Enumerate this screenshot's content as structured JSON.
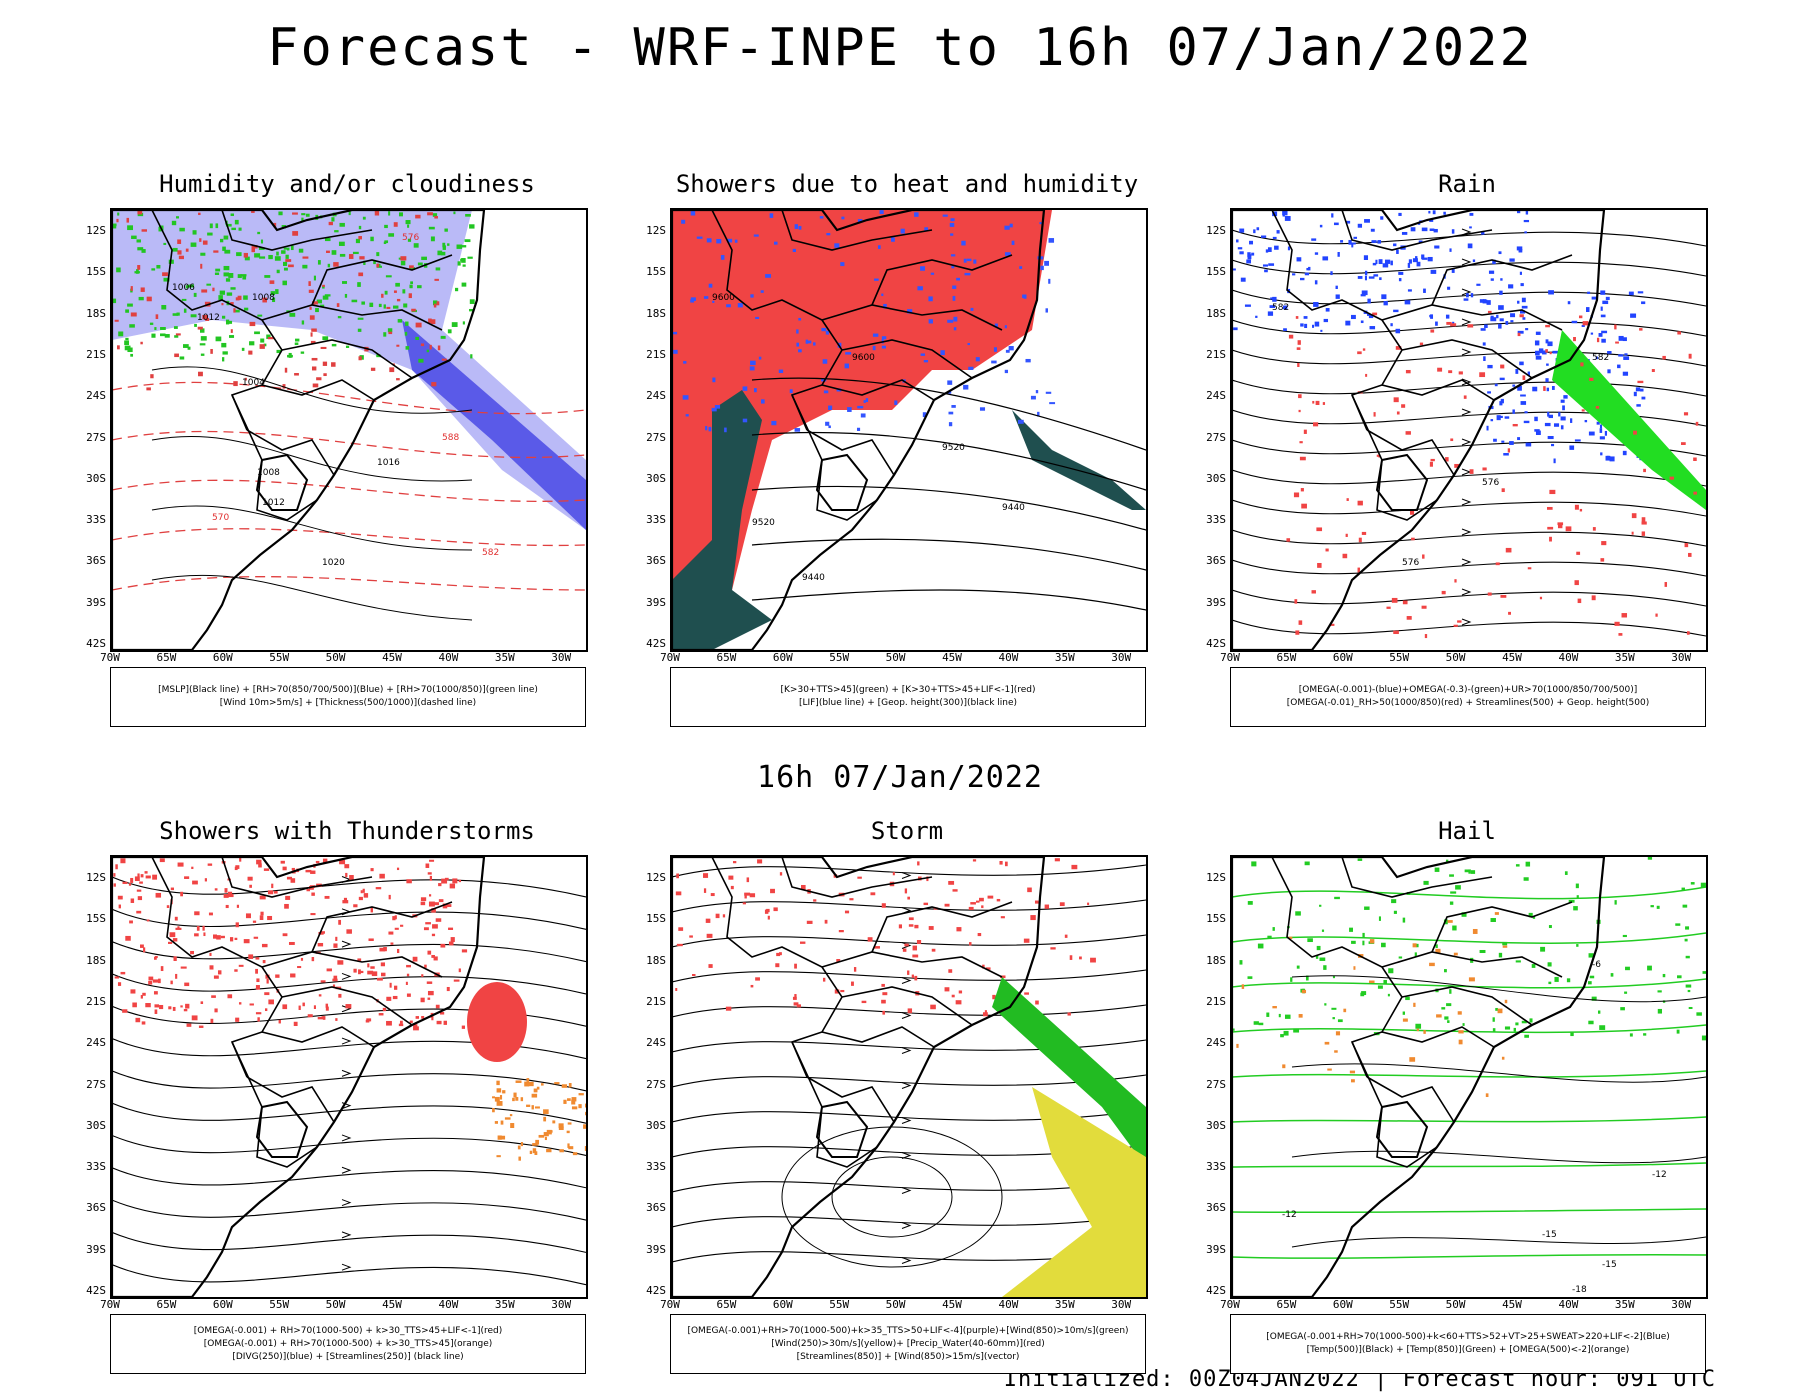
{
  "main_title": "Forecast - WRF-INPE to 16h 07/Jan/2022",
  "mid_title": "16h 07/Jan/2022",
  "footer": "Initialized: 00Z04JAN2022 | Forecast hour: 091 UTC",
  "y_axis_labels": [
    "12S",
    "15S",
    "18S",
    "21S",
    "24S",
    "27S",
    "30S",
    "33S",
    "36S",
    "39S",
    "42S"
  ],
  "x_axis_labels": [
    "70W",
    "65W",
    "60W",
    "55W",
    "50W",
    "45W",
    "40W",
    "35W",
    "30W"
  ],
  "panels": [
    {
      "title": "Humidity and/or cloudiness",
      "legend": [
        "[MSLP](Black line) + [RH>70(850/700/500)](Blue) + [RH>70(1000/850)](green line)",
        "[Wind 10m>5m/s] + [Thickness(500/1000)](dashed line)"
      ]
    },
    {
      "title": "Showers due to heat and humidity",
      "legend": [
        "[K>30+TTS>45](green) + [K>30+TTS>45+LIF<-1](red)",
        "[LIF](blue line) + [Geop. height(300)](black line)"
      ]
    },
    {
      "title": "Rain",
      "legend": [
        "[OMEGA(-0.001)-(blue)+OMEGA(-0.3)-(green)+UR>70(1000/850/700/500)]",
        "[OMEGA(-0.01)_RH>50(1000/850)(red) + Streamlines(500) + Geop. height(500)"
      ]
    },
    {
      "title": "Showers with Thunderstorms",
      "legend": [
        "[OMEGA(-0.001) + RH>70(1000-500) + k>30_TTS>45+LIF<-1](red)",
        "[OMEGA(-0.001) + RH>70(1000-500) + k>30_TTS>45](orange)",
        "[DIVG(250)](blue) + [Streamlines(250)] (black line)"
      ]
    },
    {
      "title": "Storm",
      "legend": [
        "[OMEGA(-0.001)+RH>70(1000-500)+k>35_TTS>50+LIF<-4](purple)+[Wind(850)>10m/s](green)",
        "[Wind(250)>30m/s](yellow)+ [Precip_Water(40-60mm)](red)",
        "[Streamlines(850)] + [Wind(850)>15m/s](vector)"
      ]
    },
    {
      "title": "Hail",
      "legend": [
        "[OMEGA(-0.001+RH>70(1000-500)+k<60+TTS>52+VT>25+SWEAT>220+LIF<-2](Blue)",
        "[Temp(500)](Black) + [Temp(850)](Green) + [OMEGA(500)<-2](orange)"
      ]
    }
  ],
  "contour_labels": {
    "p1": [
      "1006",
      "1008",
      "1012",
      "1004",
      "1016",
      "1020",
      "576",
      "570",
      "582",
      "588"
    ],
    "p2": [
      "9600",
      "9520",
      "9440"
    ],
    "p3": [
      "582",
      "576"
    ],
    "p6": [
      "-6",
      "-12",
      "-15",
      "-18"
    ]
  }
}
